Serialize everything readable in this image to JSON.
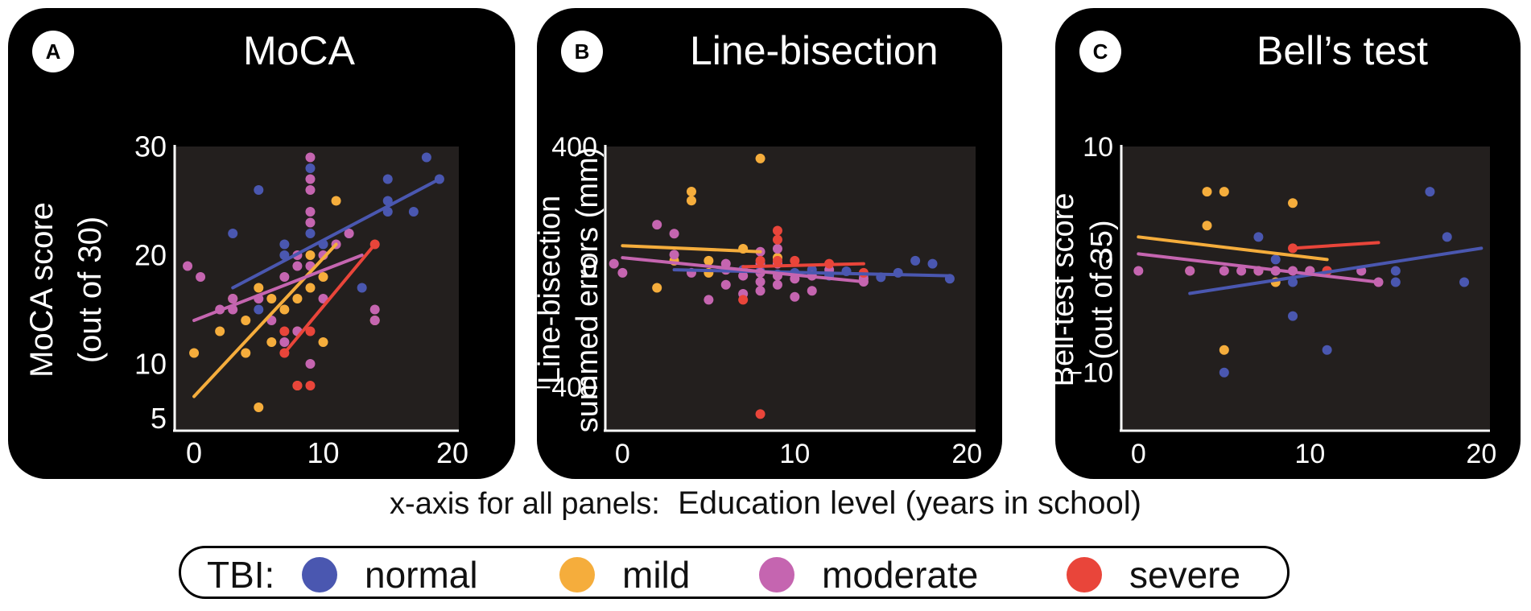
{
  "legend": {
    "title": "TBI:",
    "items": [
      {
        "label": "normal",
        "color": "#4a57b0"
      },
      {
        "label": "mild",
        "color": "#f5ad3c"
      },
      {
        "label": "moderate",
        "color": "#c565b0"
      },
      {
        "label": "severe",
        "color": "#e9453a"
      }
    ]
  },
  "xaxis_note": {
    "prefix": "x-axis for all panels:",
    "label": "Education level  (years in school)"
  },
  "chart_data": [
    {
      "type": "scatter",
      "panel": "A",
      "title": "MoCA",
      "xlabel": "Education level (years in school)",
      "ylabel": [
        "MoCA score",
        "(out of 30)"
      ],
      "xlim": [
        -1.5,
        20.5
      ],
      "ylim": [
        4,
        30
      ],
      "xticks": [
        0,
        10,
        20
      ],
      "yticks": [
        5,
        10,
        20,
        30
      ],
      "series": [
        {
          "name": "normal",
          "points": [
            [
              3,
              22
            ],
            [
              5,
              26
            ],
            [
              5,
              15
            ],
            [
              7,
              21
            ],
            [
              7,
              20
            ],
            [
              9,
              22
            ],
            [
              9,
              28
            ],
            [
              10,
              21
            ],
            [
              12,
              22
            ],
            [
              13,
              17
            ],
            [
              15,
              24
            ],
            [
              15,
              25
            ],
            [
              15,
              27
            ],
            [
              17,
              24
            ],
            [
              18,
              29
            ],
            [
              19,
              27
            ]
          ],
          "fit": [
            [
              3,
              17
            ],
            [
              19,
              27
            ]
          ]
        },
        {
          "name": "mild",
          "points": [
            [
              0,
              11
            ],
            [
              2,
              13
            ],
            [
              3,
              16
            ],
            [
              4,
              14
            ],
            [
              4,
              11
            ],
            [
              5,
              6
            ],
            [
              5,
              17
            ],
            [
              6,
              16
            ],
            [
              6,
              12
            ],
            [
              7,
              15
            ],
            [
              8,
              13
            ],
            [
              8,
              8
            ],
            [
              8,
              16
            ],
            [
              9,
              20
            ],
            [
              9,
              17
            ],
            [
              10,
              18
            ],
            [
              10,
              12
            ],
            [
              11,
              25
            ],
            [
              14,
              14
            ]
          ],
          "fit": [
            [
              0,
              7
            ],
            [
              11,
              21
            ]
          ]
        },
        {
          "name": "moderate",
          "points": [
            [
              -0.5,
              19
            ],
            [
              0.5,
              18
            ],
            [
              2,
              15
            ],
            [
              3,
              16
            ],
            [
              3,
              15
            ],
            [
              5,
              16
            ],
            [
              6,
              14
            ],
            [
              7,
              12
            ],
            [
              7,
              18
            ],
            [
              8,
              19
            ],
            [
              8,
              20
            ],
            [
              8,
              13
            ],
            [
              9,
              29
            ],
            [
              9,
              27
            ],
            [
              9,
              26
            ],
            [
              9,
              24
            ],
            [
              9,
              23
            ],
            [
              9,
              19
            ],
            [
              9,
              10
            ],
            [
              10,
              20
            ],
            [
              10,
              16
            ],
            [
              11,
              21
            ],
            [
              12,
              22
            ],
            [
              14,
              15
            ],
            [
              14,
              14
            ]
          ],
          "fit": [
            [
              0,
              14
            ],
            [
              13,
              20
            ]
          ]
        },
        {
          "name": "severe",
          "points": [
            [
              7,
              13
            ],
            [
              7,
              11
            ],
            [
              8,
              8
            ],
            [
              9,
              8
            ],
            [
              9,
              13
            ],
            [
              14,
              21
            ]
          ],
          "fit": [
            [
              7,
              11
            ],
            [
              14,
              21
            ]
          ]
        }
      ]
    },
    {
      "type": "scatter",
      "panel": "B",
      "title": "Line-bisection",
      "xlabel": "Education level (years in school)",
      "ylabel": [
        "Line-bisection",
        "summed errors (mm)"
      ],
      "xlim": [
        -1,
        20.5
      ],
      "ylim": [
        -540,
        400
      ],
      "xticks": [
        0,
        10,
        20
      ],
      "yticks": [
        400,
        0,
        -400
      ],
      "series": [
        {
          "name": "normal",
          "points": [
            [
              7,
              -10
            ],
            [
              8,
              -15
            ],
            [
              9,
              -25
            ],
            [
              10,
              -20
            ],
            [
              11,
              -10
            ],
            [
              12,
              -30
            ],
            [
              13,
              -15
            ],
            [
              14,
              -30
            ],
            [
              15,
              -35
            ],
            [
              16,
              -20
            ],
            [
              17,
              20
            ],
            [
              18,
              10
            ],
            [
              19,
              -40
            ]
          ],
          "fit": [
            [
              3,
              -10
            ],
            [
              19,
              -30
            ]
          ]
        },
        {
          "name": "mild",
          "points": [
            [
              2,
              -70
            ],
            [
              4,
              250
            ],
            [
              4,
              220
            ],
            [
              5,
              -20
            ],
            [
              6,
              -10
            ],
            [
              7,
              60
            ],
            [
              8,
              360
            ],
            [
              9,
              30
            ],
            [
              5,
              20
            ],
            [
              3,
              20
            ]
          ],
          "fit": [
            [
              0,
              70
            ],
            [
              8,
              50
            ]
          ]
        },
        {
          "name": "moderate",
          "points": [
            [
              -0.5,
              10
            ],
            [
              0,
              -20
            ],
            [
              2,
              140
            ],
            [
              3,
              110
            ],
            [
              3,
              40
            ],
            [
              4,
              -20
            ],
            [
              5,
              -110
            ],
            [
              6,
              -60
            ],
            [
              6,
              -10
            ],
            [
              6,
              10
            ],
            [
              7,
              -30
            ],
            [
              7,
              -90
            ],
            [
              8,
              -80
            ],
            [
              8,
              -50
            ],
            [
              8,
              -20
            ],
            [
              8,
              10
            ],
            [
              8,
              50
            ],
            [
              9,
              -60
            ],
            [
              9,
              -30
            ],
            [
              9,
              10
            ],
            [
              9,
              60
            ],
            [
              10,
              -40
            ],
            [
              10,
              -100
            ],
            [
              11,
              -30
            ],
            [
              11,
              -80
            ],
            [
              12,
              -10
            ],
            [
              14,
              -40
            ],
            [
              14,
              -50
            ]
          ],
          "fit": [
            [
              0,
              30
            ],
            [
              14,
              -50
            ]
          ]
        },
        {
          "name": "severe",
          "points": [
            [
              7,
              -110
            ],
            [
              8,
              -490
            ],
            [
              8,
              20
            ],
            [
              9,
              20
            ],
            [
              9,
              90
            ],
            [
              9,
              120
            ],
            [
              10,
              20
            ],
            [
              12,
              10
            ],
            [
              14,
              -20
            ]
          ],
          "fit": [
            [
              7,
              0
            ],
            [
              14,
              10
            ]
          ]
        }
      ]
    },
    {
      "type": "scatter",
      "panel": "C",
      "title": "Bell’s test",
      "xlabel": "Education level (years in school)",
      "ylabel": [
        "Bell-test score",
        "(out of 35)"
      ],
      "xlim": [
        -1,
        20.5
      ],
      "ylim": [
        -15,
        10
      ],
      "xticks": [
        0,
        10,
        20
      ],
      "yticks": [
        10,
        0,
        -10
      ],
      "series": [
        {
          "name": "normal",
          "points": [
            [
              5,
              -10
            ],
            [
              7,
              2
            ],
            [
              8,
              0
            ],
            [
              8,
              -1
            ],
            [
              9,
              -2
            ],
            [
              9,
              -5
            ],
            [
              10,
              -1
            ],
            [
              11,
              -8
            ],
            [
              13,
              -1
            ],
            [
              15,
              -1
            ],
            [
              15,
              -2
            ],
            [
              17,
              6
            ],
            [
              18,
              2
            ],
            [
              19,
              -2
            ]
          ],
          "fit": [
            [
              3,
              -3
            ],
            [
              20,
              1
            ]
          ]
        },
        {
          "name": "mild",
          "points": [
            [
              3,
              -1
            ],
            [
              4,
              3
            ],
            [
              4,
              6
            ],
            [
              5,
              6
            ],
            [
              5,
              -8
            ],
            [
              7,
              -1
            ],
            [
              8,
              -2
            ],
            [
              9,
              5
            ],
            [
              10,
              -1
            ]
          ],
          "fit": [
            [
              0,
              2
            ],
            [
              11,
              0
            ]
          ]
        },
        {
          "name": "moderate",
          "points": [
            [
              0,
              -1
            ],
            [
              3,
              -1
            ],
            [
              5,
              -1
            ],
            [
              6,
              -1
            ],
            [
              7,
              -1
            ],
            [
              8,
              -1
            ],
            [
              9,
              -1
            ],
            [
              10,
              -1
            ],
            [
              11,
              -1
            ],
            [
              13,
              -1
            ],
            [
              14,
              -2
            ]
          ],
          "fit": [
            [
              0,
              0.5
            ],
            [
              14,
              -2
            ]
          ]
        },
        {
          "name": "severe",
          "points": [
            [
              9,
              1
            ],
            [
              11,
              -1
            ]
          ],
          "fit": [
            [
              9,
              1
            ],
            [
              14,
              1.5
            ]
          ]
        }
      ]
    }
  ]
}
